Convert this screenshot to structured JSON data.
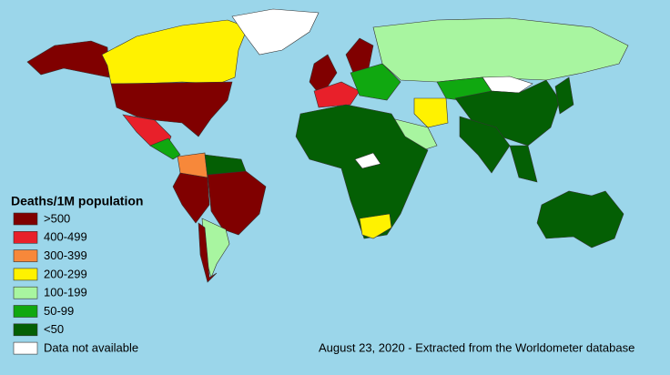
{
  "legend": {
    "title": "Deaths/1M population",
    "items": [
      {
        "label": ">500",
        "color": "#800000"
      },
      {
        "label": "400-499",
        "color": "#e8202a"
      },
      {
        "label": "300-399",
        "color": "#f7883a"
      },
      {
        "label": "200-299",
        "color": "#fff200"
      },
      {
        "label": "100-199",
        "color": "#a8f5a0"
      },
      {
        "label": "50-99",
        "color": "#10a810"
      },
      {
        "label": "<50",
        "color": "#045f04"
      },
      {
        "label": "Data not available",
        "color": "#ffffff"
      }
    ]
  },
  "caption": "August 23, 2020 - Extracted from the Worldometer database"
}
